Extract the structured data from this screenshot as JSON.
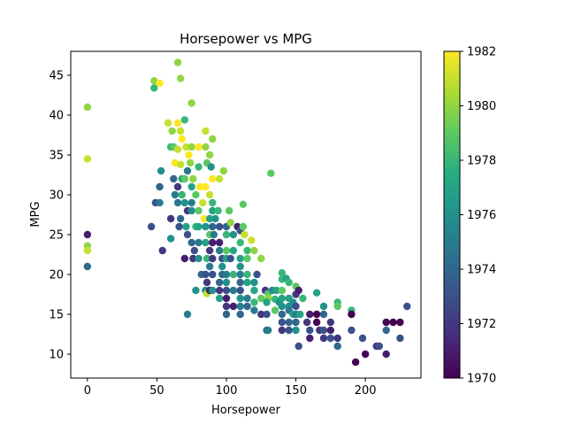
{
  "chart_data": {
    "type": "scatter",
    "title": "Horsepower vs MPG",
    "xlabel": "Horsepower",
    "ylabel": "MPG",
    "xlim": [
      -12,
      240
    ],
    "ylim": [
      7,
      48
    ],
    "xticks": [
      0,
      50,
      100,
      150,
      200
    ],
    "yticks": [
      10,
      15,
      20,
      25,
      30,
      35,
      40,
      45
    ],
    "grid": false,
    "colormap": "viridis",
    "colorbar": {
      "label": "",
      "range": [
        1970,
        1982
      ],
      "ticks": [
        1970,
        1972,
        1974,
        1976,
        1978,
        1980,
        1982
      ]
    },
    "points": [
      {
        "x": 0,
        "y": 41,
        "c": 1980
      },
      {
        "x": 0,
        "y": 34.5,
        "c": 1981
      },
      {
        "x": 0,
        "y": 25,
        "c": 1971
      },
      {
        "x": 0,
        "y": 23.6,
        "c": 1980
      },
      {
        "x": 0,
        "y": 23,
        "c": 1981
      },
      {
        "x": 0,
        "y": 21,
        "c": 1974
      },
      {
        "x": 46,
        "y": 26,
        "c": 1973
      },
      {
        "x": 48,
        "y": 44.3,
        "c": 1980
      },
      {
        "x": 48,
        "y": 43.4,
        "c": 1978
      },
      {
        "x": 52,
        "y": 44,
        "c": 1982
      },
      {
        "x": 49,
        "y": 29,
        "c": 1973
      },
      {
        "x": 52,
        "y": 31,
        "c": 1974
      },
      {
        "x": 53,
        "y": 33,
        "c": 1976
      },
      {
        "x": 54,
        "y": 23,
        "c": 1972
      },
      {
        "x": 52,
        "y": 29,
        "c": 1975
      },
      {
        "x": 58,
        "y": 39,
        "c": 1981
      },
      {
        "x": 60,
        "y": 36,
        "c": 1978
      },
      {
        "x": 61,
        "y": 38,
        "c": 1980
      },
      {
        "x": 62,
        "y": 36,
        "c": 1979
      },
      {
        "x": 63,
        "y": 34,
        "c": 1982
      },
      {
        "x": 60,
        "y": 27,
        "c": 1972
      },
      {
        "x": 60,
        "y": 24.5,
        "c": 1976
      },
      {
        "x": 62,
        "y": 32,
        "c": 1974
      },
      {
        "x": 63,
        "y": 30,
        "c": 1975
      },
      {
        "x": 65,
        "y": 46.6,
        "c": 1980
      },
      {
        "x": 67,
        "y": 44.6,
        "c": 1980
      },
      {
        "x": 65,
        "y": 39,
        "c": 1982
      },
      {
        "x": 67,
        "y": 38,
        "c": 1981
      },
      {
        "x": 68,
        "y": 37,
        "c": 1982
      },
      {
        "x": 65,
        "y": 35.7,
        "c": 1981
      },
      {
        "x": 67,
        "y": 33.8,
        "c": 1981
      },
      {
        "x": 68,
        "y": 32,
        "c": 1977
      },
      {
        "x": 65,
        "y": 31,
        "c": 1972
      },
      {
        "x": 65,
        "y": 29,
        "c": 1975
      },
      {
        "x": 67,
        "y": 27,
        "c": 1974
      },
      {
        "x": 66,
        "y": 26,
        "c": 1973
      },
      {
        "x": 68,
        "y": 30,
        "c": 1978
      },
      {
        "x": 70,
        "y": 39.4,
        "c": 1978
      },
      {
        "x": 71,
        "y": 36,
        "c": 1981
      },
      {
        "x": 72,
        "y": 33,
        "c": 1975
      },
      {
        "x": 70,
        "y": 32,
        "c": 1979
      },
      {
        "x": 70,
        "y": 29,
        "c": 1976
      },
      {
        "x": 72,
        "y": 28,
        "c": 1972
      },
      {
        "x": 71,
        "y": 26,
        "c": 1977
      },
      {
        "x": 72,
        "y": 25,
        "c": 1973
      },
      {
        "x": 70,
        "y": 22,
        "c": 1971
      },
      {
        "x": 72,
        "y": 15,
        "c": 1975
      },
      {
        "x": 73,
        "y": 35,
        "c": 1982
      },
      {
        "x": 74,
        "y": 34,
        "c": 1980
      },
      {
        "x": 75,
        "y": 41.5,
        "c": 1980
      },
      {
        "x": 75,
        "y": 36,
        "c": 1980
      },
      {
        "x": 75,
        "y": 31,
        "c": 1977
      },
      {
        "x": 75,
        "y": 29,
        "c": 1975
      },
      {
        "x": 75,
        "y": 28,
        "c": 1976
      },
      {
        "x": 75,
        "y": 24,
        "c": 1974
      },
      {
        "x": 76,
        "y": 22,
        "c": 1972
      },
      {
        "x": 77,
        "y": 23,
        "c": 1973
      },
      {
        "x": 78,
        "y": 18,
        "c": 1976
      },
      {
        "x": 78,
        "y": 26,
        "c": 1978
      },
      {
        "x": 76,
        "y": 32,
        "c": 1980
      },
      {
        "x": 78,
        "y": 30,
        "c": 1979
      },
      {
        "x": 80,
        "y": 36,
        "c": 1982
      },
      {
        "x": 80,
        "y": 33.5,
        "c": 1978
      },
      {
        "x": 81,
        "y": 31,
        "c": 1982
      },
      {
        "x": 80,
        "y": 28,
        "c": 1979
      },
      {
        "x": 80,
        "y": 26,
        "c": 1977
      },
      {
        "x": 80,
        "y": 24,
        "c": 1975
      },
      {
        "x": 80,
        "y": 22,
        "c": 1976
      },
      {
        "x": 82,
        "y": 20,
        "c": 1974
      },
      {
        "x": 83,
        "y": 29,
        "c": 1981
      },
      {
        "x": 84,
        "y": 27,
        "c": 1982
      },
      {
        "x": 85,
        "y": 38,
        "c": 1981
      },
      {
        "x": 85,
        "y": 36,
        "c": 1980
      },
      {
        "x": 86,
        "y": 34,
        "c": 1979
      },
      {
        "x": 85,
        "y": 31,
        "c": 1982
      },
      {
        "x": 85,
        "y": 26,
        "c": 1976
      },
      {
        "x": 85,
        "y": 24,
        "c": 1977
      },
      {
        "x": 86,
        "y": 22,
        "c": 1978
      },
      {
        "x": 85,
        "y": 20,
        "c": 1973
      },
      {
        "x": 86,
        "y": 19,
        "c": 1972
      },
      {
        "x": 85,
        "y": 18,
        "c": 1976
      },
      {
        "x": 86,
        "y": 17.6,
        "c": 1981
      },
      {
        "x": 88,
        "y": 35,
        "c": 1980
      },
      {
        "x": 88,
        "y": 30,
        "c": 1981
      },
      {
        "x": 88,
        "y": 27,
        "c": 1977
      },
      {
        "x": 88,
        "y": 25,
        "c": 1979
      },
      {
        "x": 88,
        "y": 23,
        "c": 1972
      },
      {
        "x": 88,
        "y": 21,
        "c": 1975
      },
      {
        "x": 88,
        "y": 18,
        "c": 1971
      },
      {
        "x": 89,
        "y": 33.5,
        "c": 1976
      },
      {
        "x": 90,
        "y": 37,
        "c": 1980
      },
      {
        "x": 90,
        "y": 32,
        "c": 1982
      },
      {
        "x": 90,
        "y": 29,
        "c": 1978
      },
      {
        "x": 90,
        "y": 28,
        "c": 1977
      },
      {
        "x": 90,
        "y": 26,
        "c": 1974
      },
      {
        "x": 90,
        "y": 24,
        "c": 1971
      },
      {
        "x": 90,
        "y": 22,
        "c": 1972
      },
      {
        "x": 90,
        "y": 20,
        "c": 1973
      },
      {
        "x": 90,
        "y": 18,
        "c": 1976
      },
      {
        "x": 91,
        "y": 25,
        "c": 1975
      },
      {
        "x": 92,
        "y": 27,
        "c": 1976
      },
      {
        "x": 94,
        "y": 28,
        "c": 1978
      },
      {
        "x": 95,
        "y": 32,
        "c": 1981
      },
      {
        "x": 95,
        "y": 26,
        "c": 1973
      },
      {
        "x": 95,
        "y": 24,
        "c": 1971
      },
      {
        "x": 95,
        "y": 23,
        "c": 1975
      },
      {
        "x": 95,
        "y": 19,
        "c": 1974
      },
      {
        "x": 95,
        "y": 18,
        "c": 1972
      },
      {
        "x": 95,
        "y": 17,
        "c": 1977
      },
      {
        "x": 97,
        "y": 21,
        "c": 1976
      },
      {
        "x": 97,
        "y": 20,
        "c": 1974
      },
      {
        "x": 97,
        "y": 22,
        "c": 1973
      },
      {
        "x": 98,
        "y": 33,
        "c": 1980
      },
      {
        "x": 100,
        "y": 26,
        "c": 1974
      },
      {
        "x": 100,
        "y": 25,
        "c": 1978
      },
      {
        "x": 100,
        "y": 23,
        "c": 1979
      },
      {
        "x": 100,
        "y": 22,
        "c": 1977
      },
      {
        "x": 100,
        "y": 20,
        "c": 1975
      },
      {
        "x": 100,
        "y": 19,
        "c": 1976
      },
      {
        "x": 100,
        "y": 18,
        "c": 1973
      },
      {
        "x": 100,
        "y": 17,
        "c": 1971
      },
      {
        "x": 100,
        "y": 16,
        "c": 1972
      },
      {
        "x": 100,
        "y": 15,
        "c": 1974
      },
      {
        "x": 102,
        "y": 28,
        "c": 1979
      },
      {
        "x": 103,
        "y": 26.5,
        "c": 1980
      },
      {
        "x": 105,
        "y": 25,
        "c": 1976
      },
      {
        "x": 105,
        "y": 23,
        "c": 1977
      },
      {
        "x": 105,
        "y": 20,
        "c": 1978
      },
      {
        "x": 105,
        "y": 18,
        "c": 1975
      },
      {
        "x": 105,
        "y": 16,
        "c": 1971
      },
      {
        "x": 103,
        "y": 22,
        "c": 1973
      },
      {
        "x": 108,
        "y": 26,
        "c": 1971
      },
      {
        "x": 110,
        "y": 25.5,
        "c": 1973
      },
      {
        "x": 110,
        "y": 24,
        "c": 1978
      },
      {
        "x": 110,
        "y": 22,
        "c": 1977
      },
      {
        "x": 110,
        "y": 21,
        "c": 1976
      },
      {
        "x": 110,
        "y": 20,
        "c": 1975
      },
      {
        "x": 110,
        "y": 19,
        "c": 1974
      },
      {
        "x": 110,
        "y": 18,
        "c": 1973
      },
      {
        "x": 110,
        "y": 17,
        "c": 1976
      },
      {
        "x": 110,
        "y": 16,
        "c": 1975
      },
      {
        "x": 110,
        "y": 15,
        "c": 1974
      },
      {
        "x": 112,
        "y": 28.8,
        "c": 1979
      },
      {
        "x": 112,
        "y": 26,
        "c": 1979
      },
      {
        "x": 113,
        "y": 25,
        "c": 1981
      },
      {
        "x": 115,
        "y": 23,
        "c": 1978
      },
      {
        "x": 115,
        "y": 22,
        "c": 1979
      },
      {
        "x": 115,
        "y": 20,
        "c": 1978
      },
      {
        "x": 115,
        "y": 19,
        "c": 1977
      },
      {
        "x": 115,
        "y": 17,
        "c": 1975
      },
      {
        "x": 115,
        "y": 16,
        "c": 1974
      },
      {
        "x": 118,
        "y": 24.3,
        "c": 1981
      },
      {
        "x": 120,
        "y": 23,
        "c": 1980
      },
      {
        "x": 120,
        "y": 19,
        "c": 1976
      },
      {
        "x": 120,
        "y": 18,
        "c": 1977
      },
      {
        "x": 120,
        "y": 16.5,
        "c": 1978
      },
      {
        "x": 120,
        "y": 15.5,
        "c": 1975
      },
      {
        "x": 122,
        "y": 20,
        "c": 1973
      },
      {
        "x": 125,
        "y": 22,
        "c": 1980
      },
      {
        "x": 125,
        "y": 17,
        "c": 1979
      },
      {
        "x": 125,
        "y": 15,
        "c": 1972
      },
      {
        "x": 128,
        "y": 18,
        "c": 1972
      },
      {
        "x": 130,
        "y": 17.6,
        "c": 1979
      },
      {
        "x": 130,
        "y": 17,
        "c": 1980
      },
      {
        "x": 129,
        "y": 16.5,
        "c": 1977
      },
      {
        "x": 129,
        "y": 15,
        "c": 1973
      },
      {
        "x": 129,
        "y": 13,
        "c": 1974
      },
      {
        "x": 130,
        "y": 13,
        "c": 1975
      },
      {
        "x": 132,
        "y": 32.7,
        "c": 1979
      },
      {
        "x": 133,
        "y": 18,
        "c": 1976
      },
      {
        "x": 135,
        "y": 16.9,
        "c": 1978
      },
      {
        "x": 135,
        "y": 15.5,
        "c": 1979
      },
      {
        "x": 136,
        "y": 18,
        "c": 1977
      },
      {
        "x": 138,
        "y": 16.5,
        "c": 1976
      },
      {
        "x": 140,
        "y": 20.2,
        "c": 1978
      },
      {
        "x": 140,
        "y": 19.4,
        "c": 1978
      },
      {
        "x": 140,
        "y": 18,
        "c": 1979
      },
      {
        "x": 140,
        "y": 17,
        "c": 1977
      },
      {
        "x": 140,
        "y": 16,
        "c": 1976
      },
      {
        "x": 140,
        "y": 15,
        "c": 1974
      },
      {
        "x": 140,
        "y": 14,
        "c": 1973
      },
      {
        "x": 140,
        "y": 13,
        "c": 1972
      },
      {
        "x": 143,
        "y": 19.5,
        "c": 1977
      },
      {
        "x": 145,
        "y": 19,
        "c": 1978
      },
      {
        "x": 145,
        "y": 17,
        "c": 1977
      },
      {
        "x": 145,
        "y": 16,
        "c": 1976
      },
      {
        "x": 145,
        "y": 15.5,
        "c": 1975
      },
      {
        "x": 145,
        "y": 14,
        "c": 1974
      },
      {
        "x": 145,
        "y": 13,
        "c": 1973
      },
      {
        "x": 148,
        "y": 16.5,
        "c": 1976
      },
      {
        "x": 148,
        "y": 15,
        "c": 1977
      },
      {
        "x": 150,
        "y": 18.5,
        "c": 1979
      },
      {
        "x": 150,
        "y": 17.5,
        "c": 1972
      },
      {
        "x": 150,
        "y": 16,
        "c": 1973
      },
      {
        "x": 150,
        "y": 15,
        "c": 1975
      },
      {
        "x": 150,
        "y": 14,
        "c": 1974
      },
      {
        "x": 150,
        "y": 13,
        "c": 1976
      },
      {
        "x": 152,
        "y": 18,
        "c": 1971
      },
      {
        "x": 152,
        "y": 11,
        "c": 1973
      },
      {
        "x": 153,
        "y": 15,
        "c": 1977
      },
      {
        "x": 155,
        "y": 17,
        "c": 1978
      },
      {
        "x": 158,
        "y": 14,
        "c": 1972
      },
      {
        "x": 160,
        "y": 15,
        "c": 1971
      },
      {
        "x": 160,
        "y": 13,
        "c": 1973
      },
      {
        "x": 160,
        "y": 12,
        "c": 1971
      },
      {
        "x": 165,
        "y": 17.7,
        "c": 1977
      },
      {
        "x": 165,
        "y": 15,
        "c": 1970
      },
      {
        "x": 165,
        "y": 14,
        "c": 1970
      },
      {
        "x": 167,
        "y": 13,
        "c": 1972
      },
      {
        "x": 170,
        "y": 16,
        "c": 1976
      },
      {
        "x": 170,
        "y": 15,
        "c": 1974
      },
      {
        "x": 170,
        "y": 13,
        "c": 1973
      },
      {
        "x": 170,
        "y": 12,
        "c": 1972
      },
      {
        "x": 175,
        "y": 14,
        "c": 1972
      },
      {
        "x": 175,
        "y": 13,
        "c": 1971
      },
      {
        "x": 175,
        "y": 12,
        "c": 1973
      },
      {
        "x": 180,
        "y": 16.5,
        "c": 1978
      },
      {
        "x": 180,
        "y": 16,
        "c": 1979
      },
      {
        "x": 180,
        "y": 12,
        "c": 1972
      },
      {
        "x": 180,
        "y": 11,
        "c": 1974
      },
      {
        "x": 190,
        "y": 15.5,
        "c": 1978
      },
      {
        "x": 190,
        "y": 15,
        "c": 1970
      },
      {
        "x": 190,
        "y": 13,
        "c": 1973
      },
      {
        "x": 193,
        "y": 9,
        "c": 1970
      },
      {
        "x": 198,
        "y": 12,
        "c": 1973
      },
      {
        "x": 200,
        "y": 10,
        "c": 1970
      },
      {
        "x": 208,
        "y": 11,
        "c": 1972
      },
      {
        "x": 210,
        "y": 11,
        "c": 1973
      },
      {
        "x": 215,
        "y": 14,
        "c": 1970
      },
      {
        "x": 215,
        "y": 13,
        "c": 1974
      },
      {
        "x": 215,
        "y": 10,
        "c": 1971
      },
      {
        "x": 220,
        "y": 14,
        "c": 1970
      },
      {
        "x": 225,
        "y": 14,
        "c": 1970
      },
      {
        "x": 225,
        "y": 12,
        "c": 1973
      },
      {
        "x": 230,
        "y": 16,
        "c": 1973
      }
    ]
  }
}
